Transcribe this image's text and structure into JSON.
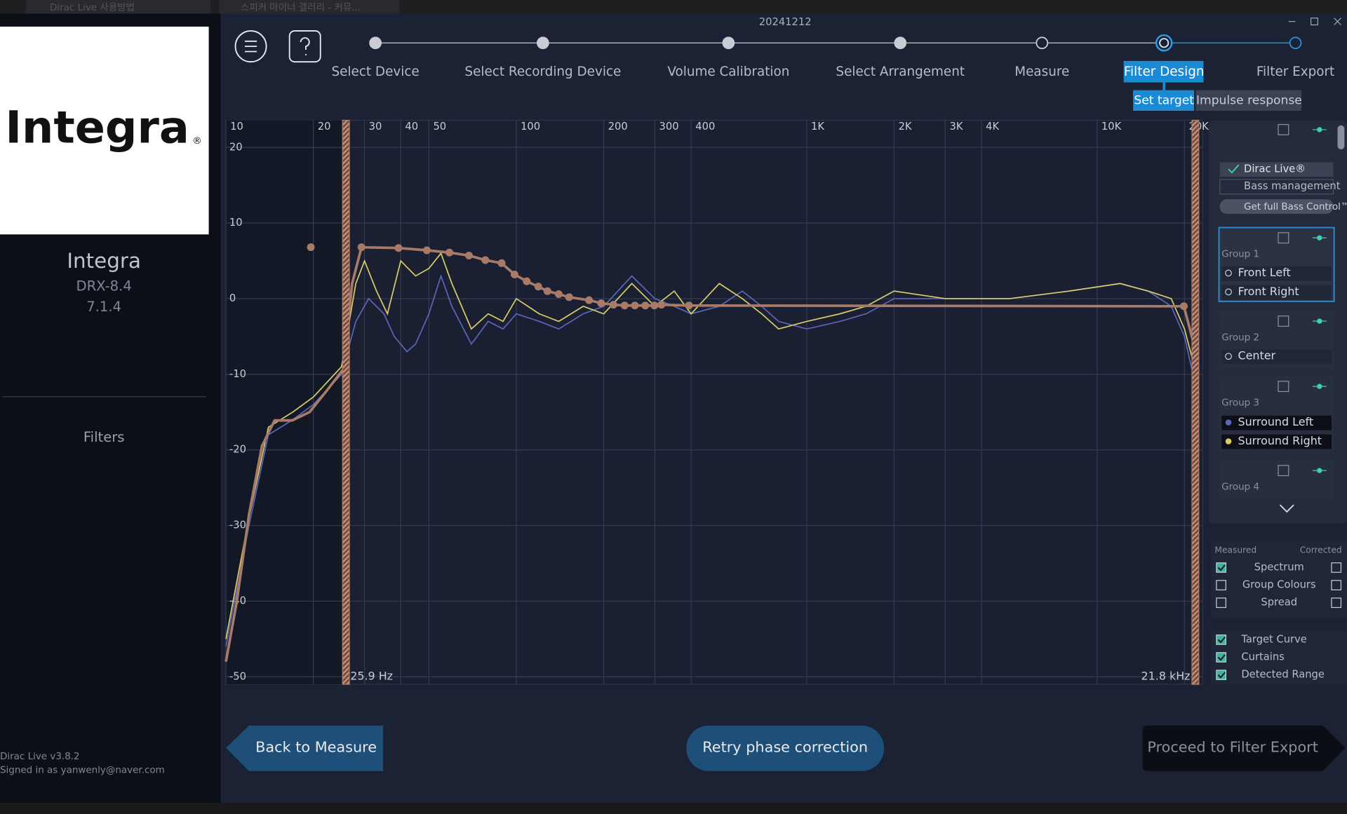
{
  "browser_tabs": [
    "Dirac Live 사용방법",
    "스피커 마이너 갤러리 - 커뮤..."
  ],
  "window_title": "20241212",
  "steps": [
    {
      "label": "Select Device",
      "state": "done"
    },
    {
      "label": "Select Recording Device",
      "state": "done"
    },
    {
      "label": "Volume Calibration",
      "state": "done"
    },
    {
      "label": "Select Arrangement",
      "state": "done"
    },
    {
      "label": "Measure",
      "state": "todo"
    },
    {
      "label": "Filter Design",
      "state": "current"
    },
    {
      "label": "Filter Export",
      "state": "next"
    }
  ],
  "subtabs": [
    "Set target",
    "Impulse response"
  ],
  "sidebar": {
    "logo": "Integra",
    "logo_mark": "®",
    "device_brand": "Integra",
    "device_model": "DRX-8.4",
    "layout": "7.1.4",
    "menu": "Filters",
    "version": "Dirac Live v3.8.2",
    "signed_in": "Signed in as yanwenly@naver.com"
  },
  "chart_data": {
    "type": "line",
    "log_x": true,
    "grid": true,
    "xlim": [
      10,
      23100
    ],
    "ylim": [
      -51,
      23.6
    ],
    "xticks": [
      10,
      20,
      30,
      40,
      50,
      100,
      200,
      300,
      400,
      {
        "value": 1000,
        "label": "1K"
      },
      {
        "value": 2000,
        "label": "2K"
      },
      {
        "value": 3000,
        "label": "3K"
      },
      {
        "value": 4000,
        "label": "4K"
      },
      {
        "value": 10000,
        "label": "10K"
      },
      {
        "value": 20000,
        "label": "20K"
      }
    ],
    "yticks": [
      20,
      10,
      0,
      -10,
      -20,
      -30,
      -40,
      -50
    ],
    "series": [
      {
        "name": "Surround Left",
        "color": "#5a66b8",
        "x": [
          10,
          12,
          14,
          17,
          20,
          25,
          28,
          31,
          35,
          38,
          42,
          45,
          50,
          55,
          60,
          70,
          80,
          90,
          100,
          120,
          140,
          170,
          200,
          250,
          300,
          350,
          400,
          500,
          600,
          700,
          800,
          1000,
          1300,
          1600,
          2000,
          3000,
          5000,
          8000,
          12000,
          15000,
          18000,
          20000,
          22000
        ],
        "values": [
          -46,
          -30,
          -18,
          -16,
          -14,
          -10,
          -3,
          0,
          -2,
          -5,
          -7,
          -6,
          -2,
          3,
          -1,
          -6,
          -3,
          -4,
          -2,
          -3,
          -4,
          -2,
          -1,
          3,
          0,
          -1,
          -2,
          -1,
          1,
          -1,
          -3,
          -4,
          -3,
          -2,
          0,
          0,
          0,
          1,
          2,
          1,
          -1,
          -5,
          -12
        ]
      },
      {
        "name": "Surround Right",
        "color": "#d8cc6a",
        "x": [
          10,
          12,
          14,
          17,
          20,
          25,
          28,
          30,
          33,
          36,
          40,
          45,
          50,
          55,
          60,
          70,
          80,
          90,
          100,
          120,
          140,
          170,
          200,
          250,
          300,
          350,
          400,
          500,
          600,
          700,
          800,
          1000,
          1300,
          1600,
          2000,
          3000,
          5000,
          8000,
          12000,
          15000,
          18000,
          20000,
          22000
        ],
        "values": [
          -45,
          -29,
          -17,
          -15,
          -13,
          -9,
          2,
          5,
          1,
          -2,
          5,
          3,
          4,
          6,
          2,
          -4,
          -2,
          -3,
          0,
          -2,
          -3,
          -1,
          -2,
          2,
          -1,
          1,
          -2,
          2,
          0,
          -2,
          -4,
          -3,
          -2,
          -1,
          1,
          0,
          0,
          1,
          2,
          1,
          0,
          -4,
          -10
        ]
      }
    ],
    "target": {
      "color": "#a87a68",
      "x": [
        10,
        10.9,
        12,
        13.3,
        14.7,
        16.9,
        19.4,
        22.2,
        25.4,
        27.2,
        29.3,
        39.3,
        49.2,
        58.8,
        68.7,
        78.2,
        89,
        98.6,
        108.6,
        119,
        128,
        140,
        152,
        178,
        196,
        216,
        236,
        256,
        278,
        299,
        316,
        393,
        19900,
        21500,
        22100
      ],
      "values": [
        -48,
        -40,
        -28.6,
        -19.5,
        -16.1,
        -16.1,
        -15,
        -12.2,
        -9.3,
        2,
        6.8,
        6.7,
        6.4,
        6.1,
        5.7,
        5.1,
        4.7,
        3.2,
        2.3,
        1.6,
        1,
        0.6,
        0.2,
        -0.2,
        -0.6,
        -0.8,
        -0.9,
        -0.9,
        -0.9,
        -0.9,
        -0.8,
        -0.9,
        -1,
        -5.9,
        -15
      ]
    },
    "target_points": {
      "x": [
        19.6,
        29.3,
        39.3,
        49.2,
        58.8,
        68.7,
        78.2,
        89,
        98.6,
        108.6,
        119,
        128,
        140,
        152,
        178,
        196,
        216,
        236,
        256,
        278,
        299,
        316,
        393,
        19900
      ],
      "values": [
        6.8,
        6.8,
        6.7,
        6.4,
        6.1,
        5.7,
        5.1,
        4.7,
        3.2,
        2.3,
        1.6,
        1,
        0.6,
        0.2,
        -0.2,
        -0.6,
        -0.8,
        -0.9,
        -0.9,
        -0.9,
        -0.9,
        -0.8,
        -0.9,
        -1
      ]
    },
    "curtains": [
      {
        "value": 25.9,
        "label": "25.9 Hz"
      },
      {
        "value": 21800,
        "label": "21.8 kHz"
      }
    ]
  },
  "panel": {
    "dirac": "Dirac Live®",
    "bass": "Bass management",
    "bass_control": "Get full Bass Control™",
    "groups": [
      {
        "name": "Group 1",
        "channels": [
          "Front Left",
          "Front Right"
        ]
      },
      {
        "name": "Group 2",
        "channels": [
          "Center"
        ]
      },
      {
        "name": "Group 3"
      },
      {
        "name": "Group 4"
      }
    ],
    "measured_header": "Measured",
    "corrected_header": "Corrected",
    "rows": [
      {
        "label": "Spectrum",
        "measured": true,
        "corrected": false
      },
      {
        "label": "Group Colours",
        "measured": false,
        "corrected": false
      },
      {
        "label": "Spread",
        "measured": false,
        "corrected": false
      }
    ],
    "toggles": [
      {
        "label": "Target Curve",
        "checked": true
      },
      {
        "label": "Curtains",
        "checked": true
      },
      {
        "label": "Detected Range",
        "checked": true
      }
    ]
  },
  "buttons": {
    "back": "Back to Measure",
    "retry": "Retry phase correction",
    "proceed": "Proceed to Filter Export"
  }
}
